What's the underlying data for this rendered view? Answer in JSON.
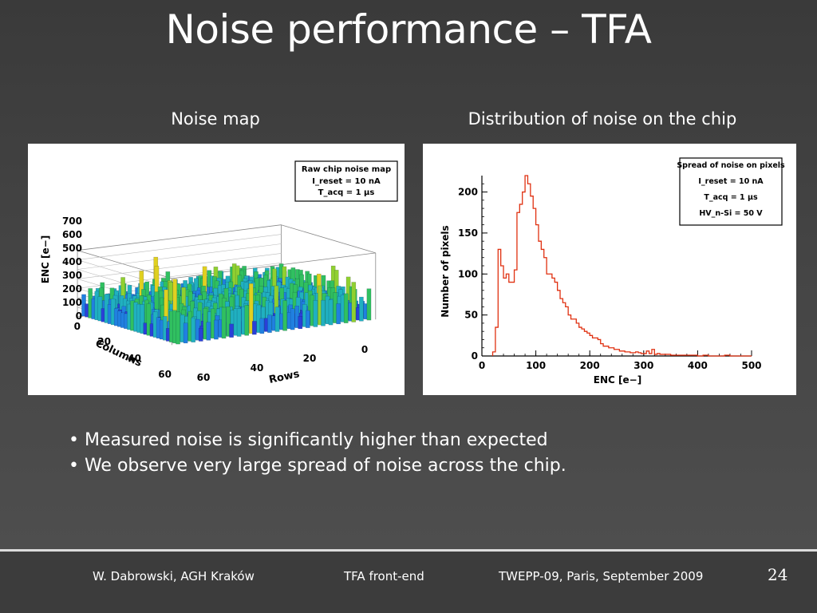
{
  "slide": {
    "title": "Noise performance – TFA",
    "left_caption": "Noise map",
    "right_caption": "Distribution of noise on the chip",
    "bullets": [
      "• Measured noise is significantly higher than expected",
      "• We observe very large spread of noise across the chip."
    ]
  },
  "footer": {
    "author": "W. Dabrowski, AGH Kraków",
    "topic": "TFA front-end",
    "event": "TWEPP-09, Paris, September 2009",
    "page": "24"
  },
  "chart_data": [
    {
      "type": "bar3d",
      "title": "Raw chip noise map",
      "legend_lines": [
        "I_reset = 10 nA",
        "T_acq = 1 μs"
      ],
      "zlabel": "ENC [e−]",
      "xlabel": "Columns",
      "ylabel": "Rows",
      "z_ticks": [
        "700",
        "600",
        "500",
        "400",
        "300",
        "200",
        "100",
        "0"
      ],
      "column_ticks": [
        "0",
        "20",
        "40",
        "60"
      ],
      "row_ticks": [
        "60",
        "40",
        "20",
        "0"
      ],
      "zlim": [
        0,
        700
      ],
      "colors": [
        "#3a10a8",
        "#2a40d8",
        "#2080e0",
        "#20b0c0",
        "#30c060",
        "#90d030",
        "#e0d020"
      ]
    },
    {
      "type": "histogram",
      "title": "Spread of noise on pixels",
      "legend_lines": [
        "I_reset = 10 nA",
        "T_acq = 1 μs",
        "HV_n-Si = 50 V"
      ],
      "xlabel": "ENC [e−]",
      "ylabel": "Number of pixels",
      "x_ticks": [
        "0",
        "100",
        "200",
        "300",
        "400",
        "500"
      ],
      "y_ticks": [
        "0",
        "50",
        "100",
        "150",
        "200"
      ],
      "xlim": [
        0,
        500
      ],
      "ylim": [
        0,
        220
      ],
      "line_color": "#e03010",
      "bin_width": 5,
      "x": [
        20,
        25,
        30,
        35,
        40,
        45,
        50,
        55,
        60,
        65,
        70,
        75,
        80,
        85,
        90,
        95,
        100,
        105,
        110,
        115,
        120,
        125,
        130,
        135,
        140,
        145,
        150,
        155,
        160,
        165,
        170,
        175,
        180,
        185,
        190,
        195,
        200,
        205,
        210,
        215,
        220,
        225,
        230,
        235,
        240,
        245,
        250,
        255,
        260,
        265,
        270,
        275,
        280,
        285,
        290,
        295,
        300,
        305,
        310,
        315,
        320,
        325,
        330,
        335,
        340,
        345,
        350,
        360,
        370,
        380,
        390,
        400,
        410,
        420,
        430,
        440,
        450,
        460,
        470,
        480,
        490
      ],
      "values": [
        5,
        35,
        130,
        110,
        95,
        100,
        90,
        90,
        105,
        175,
        185,
        200,
        220,
        210,
        195,
        180,
        160,
        140,
        130,
        120,
        100,
        100,
        95,
        90,
        80,
        70,
        65,
        60,
        50,
        45,
        45,
        40,
        35,
        33,
        30,
        28,
        25,
        22,
        22,
        20,
        15,
        12,
        12,
        10,
        10,
        8,
        8,
        6,
        6,
        5,
        5,
        4,
        4,
        5,
        4,
        3,
        3,
        6,
        3,
        8,
        2,
        3,
        2,
        2,
        2,
        2,
        1,
        1,
        1,
        1,
        1,
        0,
        1,
        0,
        0,
        0,
        1,
        0,
        0,
        0,
        0
      ]
    }
  ]
}
